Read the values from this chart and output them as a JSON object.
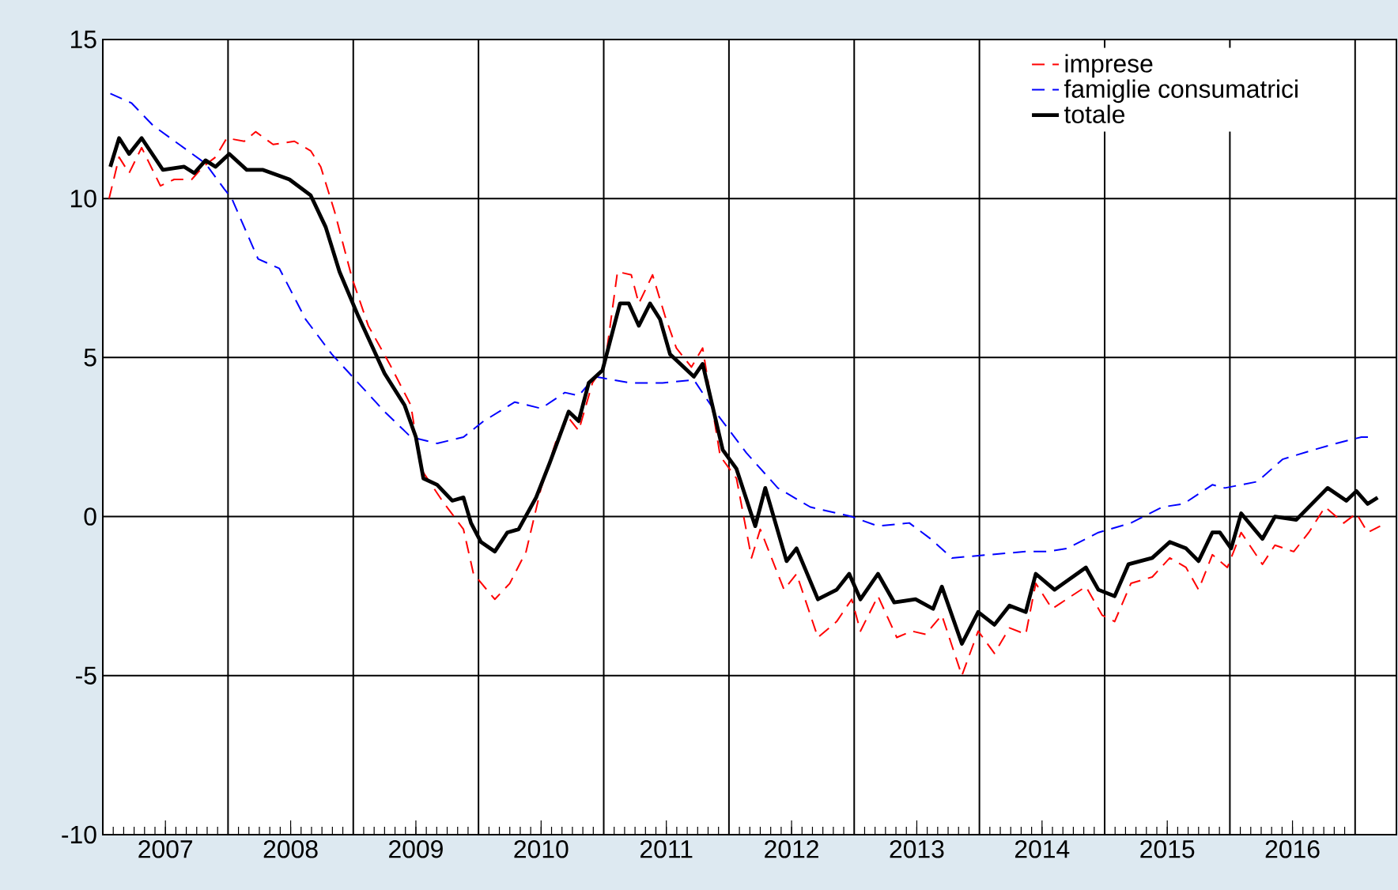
{
  "chart_data": {
    "type": "line",
    "xlim": [
      2007,
      2017.33
    ],
    "ylim": [
      -10,
      15
    ],
    "yticks": [
      -10,
      -5,
      0,
      5,
      10,
      15
    ],
    "xticks": [
      {
        "value": 2007,
        "label": null
      },
      {
        "value": 2008,
        "label": null
      },
      {
        "value": 2009,
        "label": null
      },
      {
        "value": 2010,
        "label": null
      },
      {
        "value": 2011,
        "label": null
      },
      {
        "value": 2012,
        "label": null
      },
      {
        "value": 2013,
        "label": null
      },
      {
        "value": 2014,
        "label": null
      },
      {
        "value": 2015,
        "label": null
      },
      {
        "value": 2016,
        "label": null
      },
      {
        "value": 2017,
        "label": null
      },
      {
        "value": 2007.5,
        "label": "2007"
      },
      {
        "value": 2008.5,
        "label": "2008"
      },
      {
        "value": 2009.5,
        "label": "2009"
      },
      {
        "value": 2010.5,
        "label": "2010"
      },
      {
        "value": 2011.5,
        "label": "2011"
      },
      {
        "value": 2012.5,
        "label": "2012"
      },
      {
        "value": 2013.5,
        "label": "2013"
      },
      {
        "value": 2014.5,
        "label": "2014"
      },
      {
        "value": 2015.5,
        "label": "2015"
      },
      {
        "value": 2016.5,
        "label": "2016"
      }
    ],
    "grid": true,
    "legend": "top right",
    "marker": "none",
    "series": [
      {
        "name": "imprese",
        "color": "#ff0000",
        "line_style": "dashed",
        "x": [
          2007.05,
          2007.13,
          2007.21,
          2007.31,
          2007.46,
          2007.57,
          2007.71,
          2007.8,
          2007.9,
          2007.99,
          2008.13,
          2008.22,
          2008.36,
          2008.53,
          2008.66,
          2008.74,
          2008.85,
          2008.99,
          2009.12,
          2009.29,
          2009.46,
          2009.54,
          2009.71,
          2009.88,
          2009.96,
          2010.13,
          2010.25,
          2010.38,
          2010.5,
          2010.63,
          2010.72,
          2010.8,
          2010.91,
          2011.01,
          2011.11,
          2011.22,
          2011.28,
          2011.39,
          2011.49,
          2011.58,
          2011.7,
          2011.79,
          2011.93,
          2012.06,
          2012.18,
          2012.25,
          2012.44,
          2012.54,
          2012.71,
          2012.86,
          2012.98,
          2013.05,
          2013.19,
          2013.34,
          2013.46,
          2013.57,
          2013.7,
          2013.86,
          2013.99,
          2014.12,
          2014.24,
          2014.37,
          2014.45,
          2014.58,
          2014.85,
          2014.98,
          2015.08,
          2015.21,
          2015.38,
          2015.52,
          2015.65,
          2015.75,
          2015.86,
          2015.98,
          2016.09,
          2016.26,
          2016.36,
          2016.51,
          2016.63,
          2016.76,
          2016.91,
          2017.01,
          2017.1,
          2017.2
        ],
        "values": [
          10.0,
          11.3,
          10.8,
          11.6,
          10.4,
          10.6,
          10.6,
          11.0,
          11.3,
          11.9,
          11.8,
          12.1,
          11.7,
          11.8,
          11.5,
          11.0,
          9.6,
          7.5,
          6.0,
          4.8,
          3.5,
          1.5,
          0.5,
          -0.4,
          -1.8,
          -2.6,
          -2.1,
          -1.1,
          0.9,
          2.5,
          3.1,
          2.7,
          4.2,
          4.8,
          7.7,
          7.6,
          6.7,
          7.6,
          6.3,
          5.3,
          4.7,
          5.3,
          1.9,
          1.2,
          -1.3,
          -0.4,
          -2.3,
          -1.8,
          -3.8,
          -3.3,
          -2.6,
          -3.6,
          -2.5,
          -3.8,
          -3.6,
          -3.7,
          -3.1,
          -5.0,
          -3.6,
          -4.3,
          -3.5,
          -3.7,
          -2.1,
          -2.9,
          -2.2,
          -3.1,
          -3.3,
          -2.1,
          -1.9,
          -1.3,
          -1.6,
          -2.3,
          -1.2,
          -1.6,
          -0.5,
          -1.5,
          -0.9,
          -1.1,
          -0.5,
          0.3,
          -0.2,
          0.1,
          -0.5,
          -0.3
        ]
      },
      {
        "name": "famiglie consumatrici",
        "color": "#0000ff",
        "line_style": "dashed",
        "x": [
          2007.06,
          2007.23,
          2007.4,
          2007.61,
          2007.82,
          2007.97,
          2008.03,
          2008.24,
          2008.41,
          2008.62,
          2008.83,
          2009.04,
          2009.25,
          2009.46,
          2009.67,
          2009.88,
          2010.04,
          2010.29,
          2010.5,
          2010.69,
          2010.8,
          2010.93,
          2011.22,
          2011.47,
          2011.72,
          2011.89,
          2012.14,
          2012.39,
          2012.65,
          2012.98,
          2013.19,
          2013.44,
          2013.61,
          2013.78,
          2014.07,
          2014.37,
          2014.54,
          2014.7,
          2014.95,
          2015.21,
          2015.46,
          2015.63,
          2015.86,
          2015.96,
          2016.22,
          2016.42,
          2016.67,
          2016.85,
          2017.05,
          2017.14
        ],
        "values": [
          13.3,
          13.0,
          12.3,
          11.7,
          11.1,
          10.3,
          10.0,
          8.1,
          7.8,
          6.2,
          5.1,
          4.2,
          3.3,
          2.5,
          2.3,
          2.5,
          3.0,
          3.6,
          3.4,
          3.9,
          3.8,
          4.4,
          4.2,
          4.2,
          4.3,
          3.3,
          2.0,
          0.9,
          0.3,
          0.0,
          -0.3,
          -0.2,
          -0.7,
          -1.3,
          -1.2,
          -1.1,
          -1.1,
          -1.0,
          -0.5,
          -0.2,
          0.3,
          0.4,
          1.0,
          0.9,
          1.1,
          1.8,
          2.1,
          2.3,
          2.5,
          2.5
        ]
      },
      {
        "name": "totale",
        "color": "#000000",
        "line_style": "solid",
        "x": [
          2007.06,
          2007.13,
          2007.21,
          2007.31,
          2007.48,
          2007.65,
          2007.73,
          2007.82,
          2007.9,
          2008.01,
          2008.15,
          2008.28,
          2008.49,
          2008.66,
          2008.78,
          2008.89,
          2009.04,
          2009.25,
          2009.41,
          2009.5,
          2009.56,
          2009.67,
          2009.79,
          2009.88,
          2009.94,
          2010.02,
          2010.13,
          2010.23,
          2010.32,
          2010.46,
          2010.57,
          2010.72,
          2010.8,
          2010.88,
          2010.99,
          2011.13,
          2011.2,
          2011.28,
          2011.37,
          2011.45,
          2011.53,
          2011.72,
          2011.79,
          2011.95,
          2012.06,
          2012.21,
          2012.29,
          2012.46,
          2012.54,
          2012.71,
          2012.86,
          2012.96,
          2013.05,
          2013.19,
          2013.32,
          2013.49,
          2013.63,
          2013.7,
          2013.86,
          2013.99,
          2014.12,
          2014.24,
          2014.37,
          2014.45,
          2014.6,
          2014.85,
          2014.95,
          2015.08,
          2015.19,
          2015.38,
          2015.52,
          2015.65,
          2015.75,
          2015.86,
          2015.92,
          2016.01,
          2016.09,
          2016.26,
          2016.36,
          2016.53,
          2016.78,
          2016.93,
          2017.01,
          2017.1,
          2017.18
        ],
        "values": [
          11.0,
          11.9,
          11.4,
          11.9,
          10.9,
          11.0,
          10.8,
          11.2,
          11.0,
          11.4,
          10.9,
          10.9,
          10.6,
          10.1,
          9.1,
          7.7,
          6.3,
          4.5,
          3.5,
          2.5,
          1.2,
          1.0,
          0.5,
          0.6,
          -0.2,
          -0.8,
          -1.1,
          -0.5,
          -0.4,
          0.6,
          1.7,
          3.3,
          3.0,
          4.2,
          4.6,
          6.7,
          6.7,
          6.0,
          6.7,
          6.2,
          5.1,
          4.4,
          4.8,
          2.1,
          1.5,
          -0.3,
          0.9,
          -1.4,
          -1.0,
          -2.6,
          -2.3,
          -1.8,
          -2.6,
          -1.8,
          -2.7,
          -2.6,
          -2.9,
          -2.2,
          -4.0,
          -3.0,
          -3.4,
          -2.8,
          -3.0,
          -1.8,
          -2.3,
          -1.6,
          -2.3,
          -2.5,
          -1.5,
          -1.3,
          -0.8,
          -1.0,
          -1.4,
          -0.5,
          -0.5,
          -1.0,
          0.1,
          -0.7,
          0.0,
          -0.1,
          0.9,
          0.5,
          0.8,
          0.4,
          0.6
        ]
      }
    ]
  }
}
